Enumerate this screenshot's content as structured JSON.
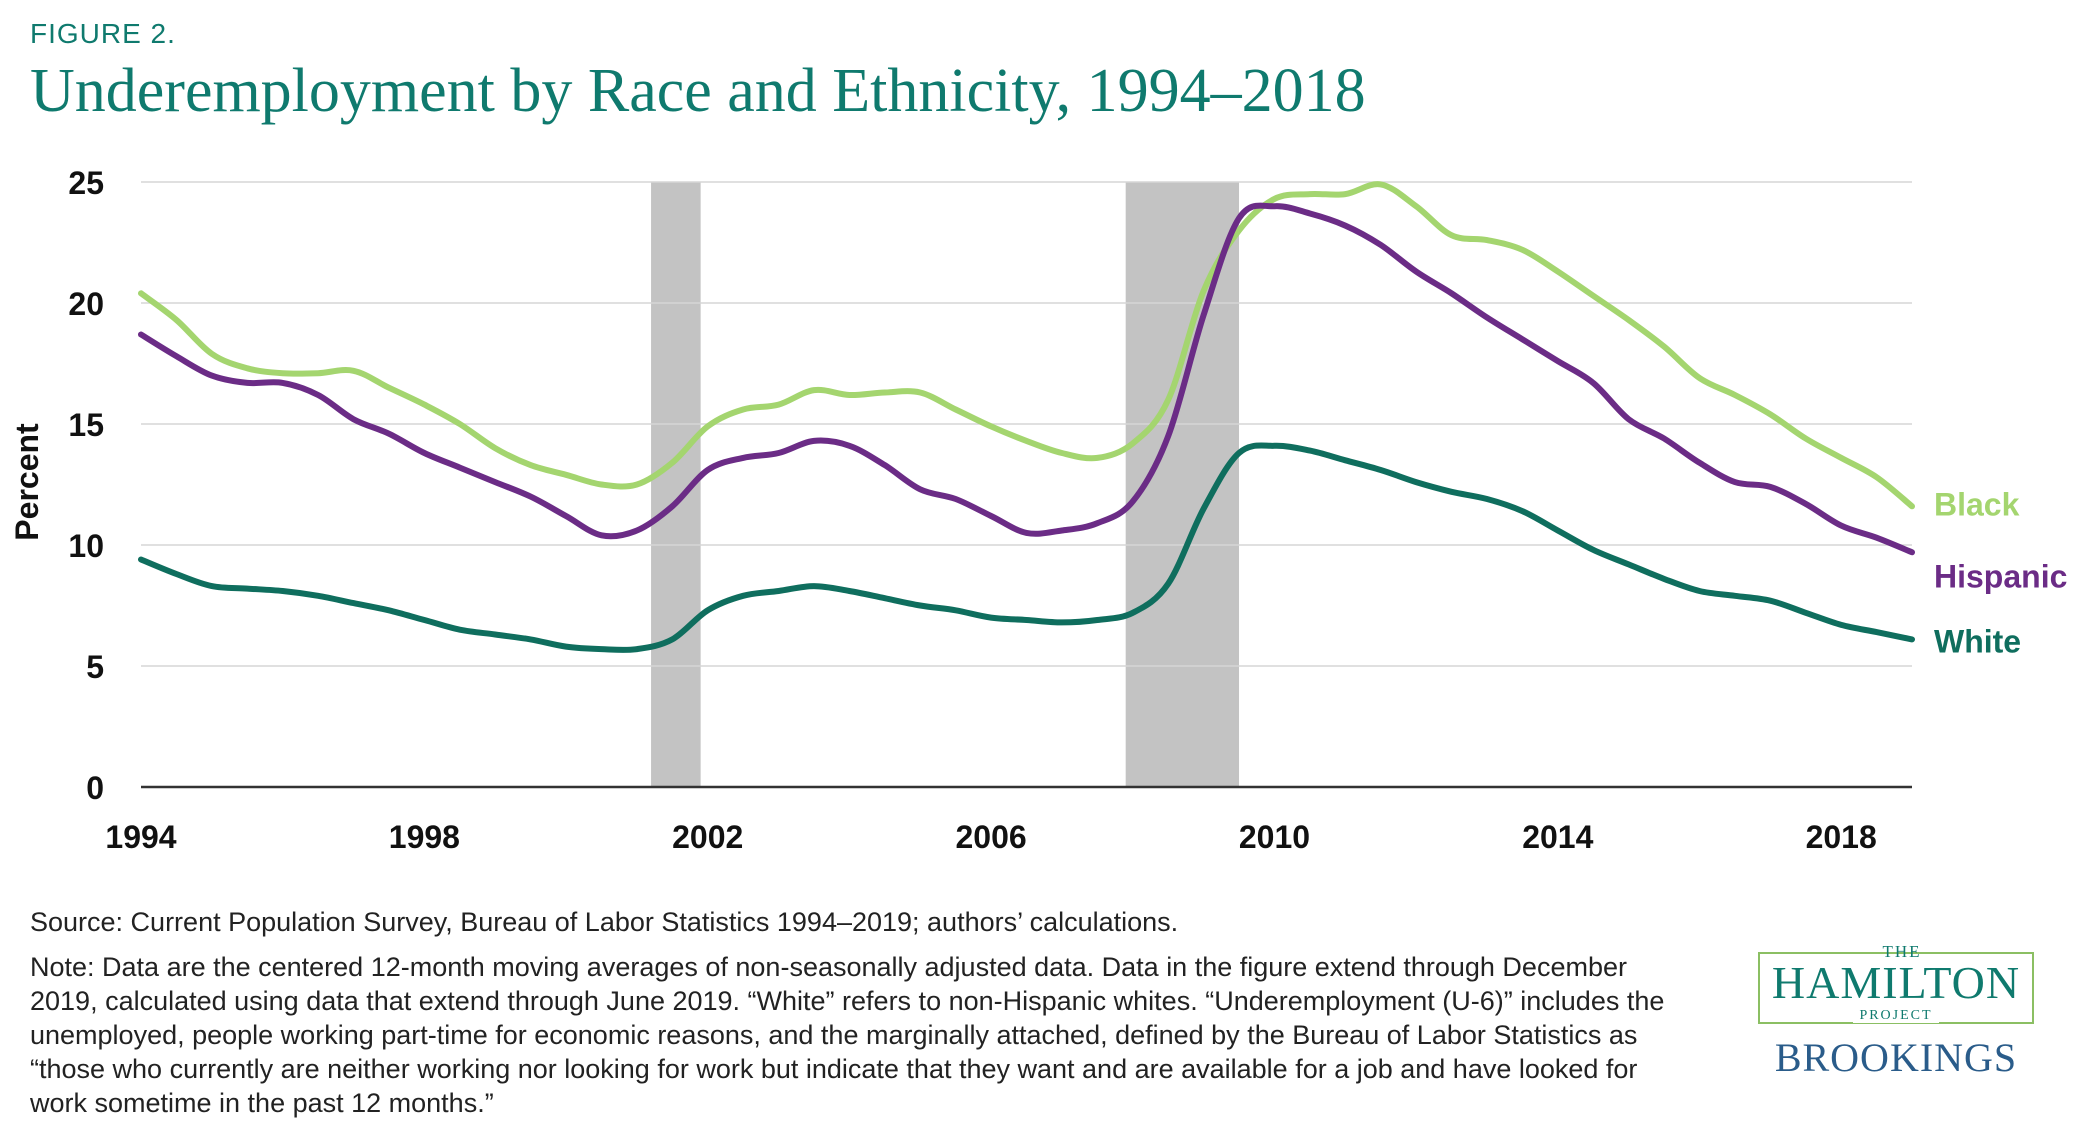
{
  "figure_label": "FIGURE 2.",
  "title": "Underemployment by Race and Ethnicity, 1994–2018",
  "source": "Source: Current Population Survey, Bureau of Labor Statistics 1994–2019; authors’ calculations.",
  "note": "Note: Data are the centered 12-month moving averages of non-seasonally adjusted data. Data in the figure extend through December 2019, calculated using data that extend through June 2019. “White” refers to non-Hispanic whites. “Underemployment (U-6)” includes the unemployed, people working part-time for economic reasons, and the marginally attached, defined by the Bureau of Labor Statistics as “those who currently are neither working nor looking for work but indicate that they want and are available for a job and have looked for work sometime in the past 12 months.”",
  "logo": {
    "the": "THE",
    "hamilton": "HAMILTON",
    "project": "PROJECT",
    "brookings": "BROOKINGS"
  },
  "colors": {
    "black": "#a4d56f",
    "hispanic": "#6b2c86",
    "white": "#0f6e5e",
    "recession": "#c3c3c3",
    "grid": "#d6d6d6",
    "title": "#0f7a6e"
  },
  "chart_data": {
    "type": "line",
    "ylabel": "Percent",
    "xlabel": "",
    "xlim": [
      1994,
      2019
    ],
    "ylim": [
      0,
      25
    ],
    "yticks": [
      0,
      5,
      10,
      15,
      20,
      25
    ],
    "xticks": [
      1994,
      1998,
      2002,
      2006,
      2010,
      2014,
      2018
    ],
    "xtick_labels": [
      "1994",
      "1998",
      "2002",
      "2006",
      "2010",
      "2014",
      "2018"
    ],
    "grid": "horizontal",
    "legend": "inline labels at right end of lines",
    "recessions": [
      [
        2001.2,
        2001.9
      ],
      [
        2007.9,
        2009.5
      ]
    ],
    "series": [
      {
        "name": "Black",
        "x": [
          1994,
          1994.5,
          1995,
          1995.5,
          1996,
          1996.5,
          1997,
          1997.5,
          1998,
          1998.5,
          1999,
          1999.5,
          2000,
          2000.5,
          2001,
          2001.5,
          2002,
          2002.5,
          2003,
          2003.5,
          2004,
          2004.5,
          2005,
          2005.5,
          2006,
          2006.5,
          2007,
          2007.5,
          2008,
          2008.5,
          2009,
          2009.5,
          2010,
          2010.5,
          2011,
          2011.5,
          2012,
          2012.5,
          2013,
          2013.5,
          2014,
          2014.5,
          2015,
          2015.5,
          2016,
          2016.5,
          2017,
          2017.5,
          2018,
          2018.5,
          2019
        ],
        "values": [
          20.4,
          19.3,
          17.9,
          17.3,
          17.1,
          17.1,
          17.2,
          16.5,
          15.8,
          15.0,
          14.0,
          13.3,
          12.9,
          12.5,
          12.5,
          13.4,
          14.9,
          15.6,
          15.8,
          16.4,
          16.2,
          16.3,
          16.3,
          15.6,
          14.9,
          14.3,
          13.8,
          13.6,
          14.2,
          16.0,
          20.5,
          23.0,
          24.3,
          24.5,
          24.5,
          24.9,
          24.0,
          22.8,
          22.6,
          22.2,
          21.3,
          20.3,
          19.3,
          18.2,
          16.9,
          16.2,
          15.4,
          14.4,
          13.6,
          12.8,
          11.6
        ]
      },
      {
        "name": "Hispanic",
        "x": [
          1994,
          1994.5,
          1995,
          1995.5,
          1996,
          1996.5,
          1997,
          1997.5,
          1998,
          1998.5,
          1999,
          1999.5,
          2000,
          2000.5,
          2001,
          2001.5,
          2002,
          2002.5,
          2003,
          2003.5,
          2004,
          2004.5,
          2005,
          2005.5,
          2006,
          2006.5,
          2007,
          2007.5,
          2008,
          2008.5,
          2009,
          2009.5,
          2010,
          2010.5,
          2011,
          2011.5,
          2012,
          2012.5,
          2013,
          2013.5,
          2014,
          2014.5,
          2015,
          2015.5,
          2016,
          2016.5,
          2017,
          2017.5,
          2018,
          2018.5,
          2019
        ],
        "values": [
          18.7,
          17.8,
          17.0,
          16.7,
          16.7,
          16.2,
          15.2,
          14.6,
          13.8,
          13.2,
          12.6,
          12.0,
          11.2,
          10.4,
          10.6,
          11.6,
          13.1,
          13.6,
          13.8,
          14.3,
          14.1,
          13.3,
          12.3,
          11.9,
          11.2,
          10.5,
          10.6,
          10.9,
          11.8,
          14.5,
          19.5,
          23.5,
          24.0,
          23.7,
          23.2,
          22.4,
          21.3,
          20.4,
          19.4,
          18.5,
          17.6,
          16.7,
          15.2,
          14.4,
          13.4,
          12.6,
          12.4,
          11.7,
          10.8,
          10.3,
          9.7
        ]
      },
      {
        "name": "White",
        "x": [
          1994,
          1994.5,
          1995,
          1995.5,
          1996,
          1996.5,
          1997,
          1997.5,
          1998,
          1998.5,
          1999,
          1999.5,
          2000,
          2000.5,
          2001,
          2001.5,
          2002,
          2002.5,
          2003,
          2003.5,
          2004,
          2004.5,
          2005,
          2005.5,
          2006,
          2006.5,
          2007,
          2007.5,
          2008,
          2008.5,
          2009,
          2009.5,
          2010,
          2010.5,
          2011,
          2011.5,
          2012,
          2012.5,
          2013,
          2013.5,
          2014,
          2014.5,
          2015,
          2015.5,
          2016,
          2016.5,
          2017,
          2017.5,
          2018,
          2018.5,
          2019
        ],
        "values": [
          9.4,
          8.8,
          8.3,
          8.2,
          8.1,
          7.9,
          7.6,
          7.3,
          6.9,
          6.5,
          6.3,
          6.1,
          5.8,
          5.7,
          5.7,
          6.1,
          7.3,
          7.9,
          8.1,
          8.3,
          8.1,
          7.8,
          7.5,
          7.3,
          7.0,
          6.9,
          6.8,
          6.9,
          7.2,
          8.4,
          11.5,
          13.8,
          14.1,
          13.9,
          13.5,
          13.1,
          12.6,
          12.2,
          11.9,
          11.4,
          10.6,
          9.8,
          9.2,
          8.6,
          8.1,
          7.9,
          7.7,
          7.2,
          6.7,
          6.4,
          6.1
        ]
      }
    ]
  }
}
